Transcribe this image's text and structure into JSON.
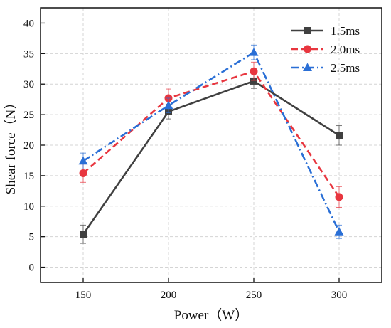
{
  "chart_data": {
    "type": "line",
    "title": "",
    "xlabel": "Power（W）",
    "ylabel": "Shear force（N）",
    "x": [
      150,
      200,
      250,
      300
    ],
    "xlim": [
      125,
      325
    ],
    "ylim": [
      -2.5,
      42.5
    ],
    "yticks": [
      0,
      5,
      10,
      15,
      20,
      25,
      30,
      35,
      40
    ],
    "grid": true,
    "legend_position": "top-right",
    "series": [
      {
        "name": "1.5ms",
        "values": [
          5.4,
          25.5,
          30.5,
          21.6
        ],
        "errors": [
          1.5,
          1.2,
          1.2,
          1.6
        ],
        "color": "#404040",
        "marker": "square",
        "dash": "solid"
      },
      {
        "name": "2.0ms",
        "values": [
          15.4,
          27.7,
          32.1,
          11.5
        ],
        "errors": [
          1.5,
          1.5,
          1.5,
          1.7
        ],
        "color": "#e8363f",
        "marker": "circle",
        "dash": "dashed"
      },
      {
        "name": "2.5ms",
        "values": [
          17.4,
          26.5,
          35.2,
          5.8
        ],
        "errors": [
          1.3,
          1.2,
          1.2,
          1.1
        ],
        "color": "#2a6fd6",
        "marker": "triangle",
        "dash": "dashdot"
      }
    ]
  }
}
